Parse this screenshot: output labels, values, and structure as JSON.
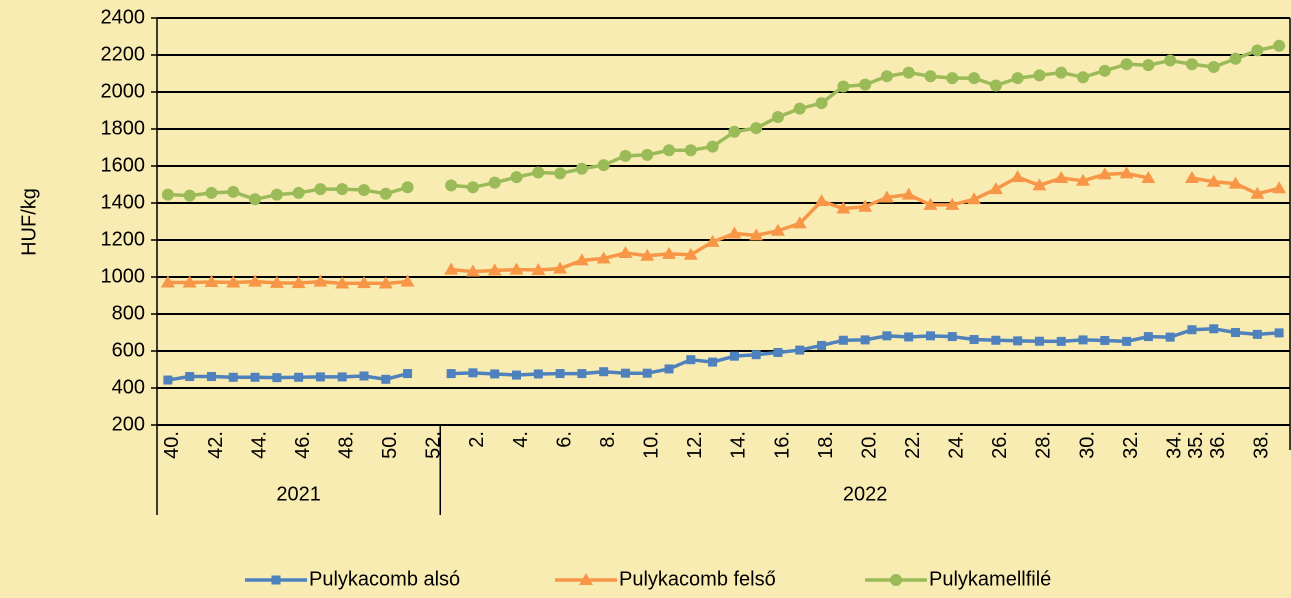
{
  "chart_data": {
    "type": "line",
    "y_label": "HUF/kg",
    "ylim": [
      200,
      2400
    ],
    "yticks": [
      200,
      400,
      600,
      800,
      1000,
      1200,
      1400,
      1600,
      1800,
      2000,
      2200,
      2400
    ],
    "grid": true,
    "legend": "bottom",
    "categories": [
      "40.",
      null,
      "42.",
      null,
      "44.",
      null,
      "46.",
      null,
      "48.",
      null,
      "50.",
      null,
      "52.",
      null,
      "2.",
      null,
      "4.",
      null,
      "6.",
      null,
      "8.",
      null,
      "10.",
      null,
      "12.",
      null,
      "14.",
      null,
      "16.",
      null,
      "18.",
      null,
      "20.",
      null,
      "22.",
      null,
      "24.",
      null,
      "26.",
      null,
      "28.",
      null,
      "30.",
      null,
      "32.",
      null,
      "34.",
      "35.",
      "36.",
      null,
      "38.",
      null
    ],
    "groups": [
      {
        "label": "2021",
        "count": 13
      },
      {
        "label": "2022",
        "count": 39
      }
    ],
    "series": [
      {
        "name": "Pulykacomb alsó",
        "color": "#4f81bd",
        "marker": "square",
        "values": [
          443,
          462,
          462,
          458,
          458,
          456,
          458,
          460,
          460,
          465,
          447,
          478,
          null,
          478,
          482,
          476,
          470,
          476,
          478,
          478,
          488,
          480,
          480,
          503,
          553,
          540,
          572,
          580,
          592,
          605,
          630,
          658,
          660,
          682,
          676,
          682,
          678,
          662,
          658,
          655,
          653,
          652,
          660,
          657,
          652,
          678,
          675,
          715,
          720,
          700,
          690,
          698
        ]
      },
      {
        "name": "Pulykacomb felső",
        "color": "#f79646",
        "marker": "triangle",
        "values": [
          970,
          970,
          973,
          970,
          975,
          968,
          967,
          975,
          965,
          967,
          965,
          975,
          null,
          1040,
          1030,
          1035,
          1040,
          1038,
          1045,
          1090,
          1100,
          1130,
          1115,
          1125,
          1120,
          1190,
          1235,
          1225,
          1250,
          1290,
          1410,
          1370,
          1380,
          1430,
          1445,
          1390,
          1390,
          1420,
          1475,
          1540,
          1495,
          1535,
          1520,
          1555,
          1560,
          1535,
          null,
          1535,
          1515,
          1505,
          1450,
          1480
        ]
      },
      {
        "name": "Pulykamellfilé",
        "color": "#9bbb59",
        "marker": "circle",
        "values": [
          1445,
          1440,
          1455,
          1460,
          1420,
          1445,
          1455,
          1475,
          1475,
          1470,
          1450,
          1485,
          null,
          1495,
          1485,
          1510,
          1540,
          1565,
          1560,
          1585,
          1605,
          1655,
          1660,
          1685,
          1685,
          1705,
          1785,
          1805,
          1865,
          1910,
          1940,
          2030,
          2040,
          2085,
          2105,
          2085,
          2075,
          2075,
          2035,
          2075,
          2090,
          2105,
          2080,
          2115,
          2150,
          2145,
          2170,
          2150,
          2135,
          2180,
          2225,
          2250
        ]
      }
    ]
  }
}
